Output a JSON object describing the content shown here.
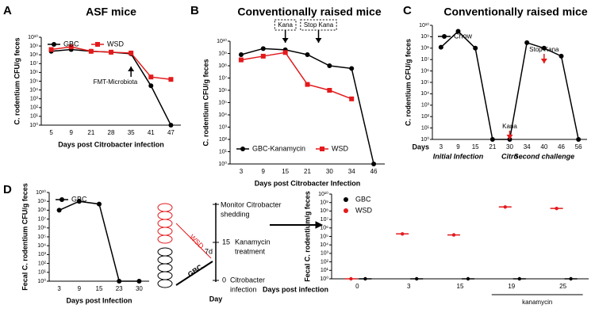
{
  "chart_data": [
    {
      "type": "line",
      "panel": "A",
      "title": "ASF mice",
      "ylabel": "C. rodentium CFU/g feces",
      "xlabel": "Days post Citrobacter infection",
      "categories": [
        "5",
        "9",
        "21",
        "28",
        "35",
        "41",
        "47"
      ],
      "log_y": true,
      "legend": "upper left",
      "ylim": [
        1,
        10000000000.0
      ],
      "yticks": [
        {
          "value": 1,
          "label": "10⁰"
        },
        {
          "value": 10,
          "label": "10¹"
        },
        {
          "value": 100,
          "label": "10²"
        },
        {
          "value": 1000,
          "label": "10³"
        },
        {
          "value": 10000,
          "label": "10⁴"
        },
        {
          "value": 100000,
          "label": "10⁵"
        },
        {
          "value": 1000000,
          "label": "10⁶"
        },
        {
          "value": 10000000,
          "label": "10⁷"
        },
        {
          "value": 100000000,
          "label": "10⁸"
        },
        {
          "value": 1000000000,
          "label": "10⁹"
        },
        {
          "value": 10000000000,
          "label": "10¹⁰"
        }
      ],
      "series": [
        {
          "name": "GBC",
          "color": "#000000",
          "marker": "circle",
          "values": [
            250000000.0,
            400000000.0,
            250000000.0,
            200000000.0,
            130000000.0,
            30000.0,
            1
          ]
        },
        {
          "name": "WSD",
          "color": "#e31a1c",
          "marker": "square",
          "values": [
            400000000.0,
            800000000.0,
            250000000.0,
            200000000.0,
            160000000.0,
            300000.0,
            160000.0
          ]
        }
      ],
      "annotations": [
        "FMT-Microbiota"
      ]
    },
    {
      "type": "line",
      "panel": "B",
      "title": "Conventionally raised mice",
      "ylabel": "C. rodentium CFU/g feces",
      "xlabel": "Days post Citrobacter Infection",
      "categories": [
        "3",
        "9",
        "15",
        "21",
        "30",
        "34",
        "46"
      ],
      "log_y": true,
      "legend": "lower center",
      "ylim": [
        1,
        10000000000.0
      ],
      "yticks": [
        {
          "value": 1,
          "label": "10⁰"
        },
        {
          "value": 10,
          "label": "10¹"
        },
        {
          "value": 100,
          "label": "10²"
        },
        {
          "value": 1000,
          "label": "10³"
        },
        {
          "value": 10000,
          "label": "10⁴"
        },
        {
          "value": 100000,
          "label": "10⁵"
        },
        {
          "value": 1000000,
          "label": "10⁶"
        },
        {
          "value": 10000000,
          "label": "10⁷"
        },
        {
          "value": 100000000,
          "label": "10⁸"
        },
        {
          "value": 1000000000,
          "label": "10⁹"
        },
        {
          "value": 10000000000,
          "label": "10¹⁰"
        }
      ],
      "series": [
        {
          "name": "GBC-Kanamycin",
          "color": "#000000",
          "marker": "circle",
          "values": [
            800000000.0,
            2500000000.0,
            2000000000.0,
            800000000.0,
            100000000.0,
            60000000.0,
            1
          ]
        },
        {
          "name": "WSD",
          "color": "#e31a1c",
          "marker": "square",
          "values": [
            300000000.0,
            600000000.0,
            1200000000.0,
            3000000.0,
            1000000.0,
            200000.0,
            null
          ]
        }
      ],
      "annotations": [
        "Kana",
        "Stop Kana"
      ]
    },
    {
      "type": "line",
      "panel": "C",
      "title": "Conventionally raised mice",
      "ylabel": "C. rodentium CFU/g feces",
      "xlabel": "Days",
      "categories": [
        "3",
        "9",
        "15",
        "21",
        "30",
        "34",
        "40",
        "46",
        "56"
      ],
      "log_y": true,
      "legend": "upper left",
      "ylim": [
        1,
        10000000000.0
      ],
      "yticks": [
        {
          "value": 1,
          "label": "10⁰"
        },
        {
          "value": 10,
          "label": "10¹"
        },
        {
          "value": 100,
          "label": "10²"
        },
        {
          "value": 1000,
          "label": "10³"
        },
        {
          "value": 10000,
          "label": "10⁴"
        },
        {
          "value": 100000,
          "label": "10⁵"
        },
        {
          "value": 1000000,
          "label": "10⁶"
        },
        {
          "value": 10000000,
          "label": "10⁷"
        },
        {
          "value": 100000000,
          "label": "10⁸"
        },
        {
          "value": 1000000000,
          "label": "10⁹"
        },
        {
          "value": 10000000000,
          "label": "10¹⁰"
        }
      ],
      "series": [
        {
          "name": "Chow",
          "color": "#000000",
          "marker": "circle",
          "values": [
            120000000.0,
            3000000000.0,
            100000000.0,
            1,
            1,
            300000000.0,
            100000000.0,
            20000000.0,
            1
          ]
        }
      ],
      "annotations": [
        "Kana",
        "Stop Kana",
        "Initial Infection",
        "Citro",
        "Second challenge"
      ]
    },
    {
      "type": "line",
      "panel": "D",
      "ylabel": "Fecal C. rodentium CFU/g feces",
      "xlabel": "Days post Infection",
      "categories": [
        "3",
        "9",
        "15",
        "23",
        "30"
      ],
      "log_y": true,
      "legend": "upper left",
      "ylim": [
        1,
        10000000000.0
      ],
      "yticks": [
        {
          "value": 1,
          "label": "10⁰"
        },
        {
          "value": 10,
          "label": "10¹"
        },
        {
          "value": 100,
          "label": "10²"
        },
        {
          "value": 1000,
          "label": "10³"
        },
        {
          "value": 10000,
          "label": "10⁴"
        },
        {
          "value": 100000,
          "label": "10⁵"
        },
        {
          "value": 1000000,
          "label": "10⁶"
        },
        {
          "value": 10000000,
          "label": "10⁷"
        },
        {
          "value": 100000000,
          "label": "10⁸"
        },
        {
          "value": 1000000000,
          "label": "10⁹"
        },
        {
          "value": 10000000000,
          "label": "10¹⁰"
        }
      ],
      "series": [
        {
          "name": "GBC",
          "color": "#000000",
          "marker": "circle",
          "values": [
            100000000.0,
            1000000000.0,
            500000000.0,
            1,
            1
          ]
        }
      ]
    },
    {
      "type": "scatter",
      "ylabel": "Fecal C. rodentium/g feces",
      "xlabel": "Days post infection",
      "categories": [
        "0",
        "3",
        "15",
        "19",
        "25"
      ],
      "log_y": true,
      "legend": "upper left",
      "group_label": "kanamycin",
      "ylim": [
        1,
        10000000000.0
      ],
      "yticks": [
        {
          "value": 1,
          "label": "10⁰"
        },
        {
          "value": 10,
          "label": "10¹"
        },
        {
          "value": 100,
          "label": "10²"
        },
        {
          "value": 1000,
          "label": "10³"
        },
        {
          "value": 10000,
          "label": "10⁴"
        },
        {
          "value": 100000,
          "label": "10⁵"
        },
        {
          "value": 1000000,
          "label": "10⁶"
        },
        {
          "value": 10000000,
          "label": "10⁷"
        },
        {
          "value": 100000000,
          "label": "10⁸"
        },
        {
          "value": 1000000000,
          "label": "10⁹"
        },
        {
          "value": 10000000000,
          "label": "10¹⁰"
        }
      ],
      "series": [
        {
          "name": "GBC",
          "color": "#000000",
          "marker": "circle",
          "values": [
            1,
            1,
            1,
            1,
            1
          ]
        },
        {
          "name": "WSD",
          "color": "#e31a1c",
          "marker": "circle",
          "values": [
            1,
            200000.0,
            150000.0,
            300000000.0,
            200000000.0
          ]
        }
      ]
    }
  ],
  "diagram": {
    "wsd": "WSD",
    "gbc": "GBC",
    "days": "7d",
    "monitor": [
      "Monitor Citrobacter",
      "shedding"
    ],
    "kana_day": "15",
    "kana": [
      "Kanamycin",
      "treatment"
    ],
    "start_day": "0",
    "infection": [
      "Citrobacter",
      "infection"
    ],
    "axis": "Day"
  }
}
